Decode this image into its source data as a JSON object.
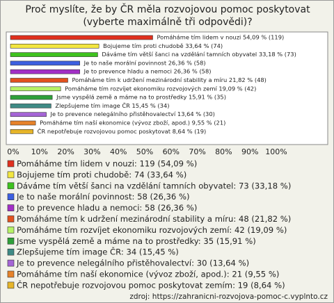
{
  "chart_data": {
    "type": "hbar",
    "title": "Proč myslíte, že by ČR měla rozvojovou pomoc poskytovat (vyberte maximálně tři odpovědi)?",
    "categories": [
      "Pomáháme tím lidem v nouzi",
      "Bojujeme tím proti chudobě",
      "Dáváme tím větší šanci na vzdělání tamních obyvatel",
      "Je to naše morální povinnost",
      "Je to prevence hladu a nemoci",
      "Pomáháme tím k udržení mezinárodní stability a míru",
      "Pomáháme tím rozvíjet ekonomiku rozvojových zemí",
      "Jsme vyspělá země a máme na to prostředky",
      "Zlepšujeme tím image ČR",
      "Je to prevence nelegálního přistěhovalectví",
      "Pomáháme tím naší ekonomice (vývoz zboží, apod.)",
      "ČR nepotřebuje rozvojovou pomoc poskytovat"
    ],
    "values": [
      54.09,
      33.64,
      33.18,
      26.36,
      26.36,
      21.82,
      19.09,
      15.91,
      15.45,
      13.64,
      9.55,
      8.64
    ],
    "value_labels": [
      "Pomáháme tím lidem v nouzi 54,09 % (119)",
      "Bojujeme tím proti chudobě 33,64 % (74)",
      "Dáváme tím větší šanci na vzdělání tamních obyvatel 33,18 % (73)",
      "Je to naše morální povinnost 26,36 % (58)",
      "Je to prevence hladu a nemoci 26,36 % (58)",
      "Pomáháme tím k udržení mezinárodní stability a míru 21,82 % (48)",
      "Pomáháme tím rozvíjet ekonomiku rozvojových zemí 19,09 % (42)",
      "Jsme vyspělá země a máme na to prostředky 15,91 % (35)",
      "Zlepšujeme tím image ČR 15,45 % (34)",
      "Je to prevence nelegálního přistěhovalectví 13,64 % (30)",
      "Pomáháme tím naší ekonomice (vývoz zboží, apod.) 9,55 % (21)",
      "ČR nepotřebuje rozvojovou pomoc poskytovat 8,64 % (19)"
    ],
    "legend_labels": [
      "Pomáháme tím lidem v nouzi: 119 (54,09 %)",
      "Bojujeme tím proti chudobě: 74 (33,64 %)",
      "Dáváme tím větší šanci na vzdělání tamních obyvatel: 73 (33,18 %)",
      "Je to naše morální povinnost: 58 (26,36 %)",
      "Je to prevence hladu a nemoci: 58 (26,36 %)",
      "Pomáháme tím k udržení mezinárodní stability a míru: 48 (21,82 %)",
      "Pomáháme tím rozvíjet ekonomiku rozvojových zemí: 42 (19,09 %)",
      "Jsme vyspělá země a máme na to prostředky: 35 (15,91 %)",
      "Zlepšujeme tím image ČR: 34 (15,45 %)",
      "Je to prevence nelegálního přistěhovalectví: 30 (13,64 %)",
      "Pomáháme tím naší ekonomice (vývoz zboží, apod.): 21 (9,55 %)",
      "ČR nepotřebuje rozvojovou pomoc poskytovat zemím: 19 (8,64 %)"
    ],
    "colors": [
      "#e0301e",
      "#f2e640",
      "#3ec21e",
      "#3d5fe0",
      "#a22fc6",
      "#e2521e",
      "#b6f266",
      "#2fa03a",
      "#3f8a86",
      "#a565d6",
      "#e6822a",
      "#e6b52a"
    ],
    "xlim": [
      0,
      100
    ],
    "xticks": [
      {
        "value": 0,
        "label": "0%"
      },
      {
        "value": 10,
        "label": "10%"
      },
      {
        "value": 20,
        "label": "20%"
      },
      {
        "value": 30,
        "label": "30%"
      },
      {
        "value": 40,
        "label": "40%"
      },
      {
        "value": 50,
        "label": "50%"
      },
      {
        "value": 60,
        "label": "60%"
      },
      {
        "value": 70,
        "label": "70%"
      },
      {
        "value": 80,
        "label": "80%"
      },
      {
        "value": 90,
        "label": "90%"
      },
      {
        "value": 100,
        "label": "100%"
      }
    ],
    "grid": false,
    "source": "zdroj: https://zahranicni-rozvojova-pomoc-c.vyplnto.cz"
  }
}
